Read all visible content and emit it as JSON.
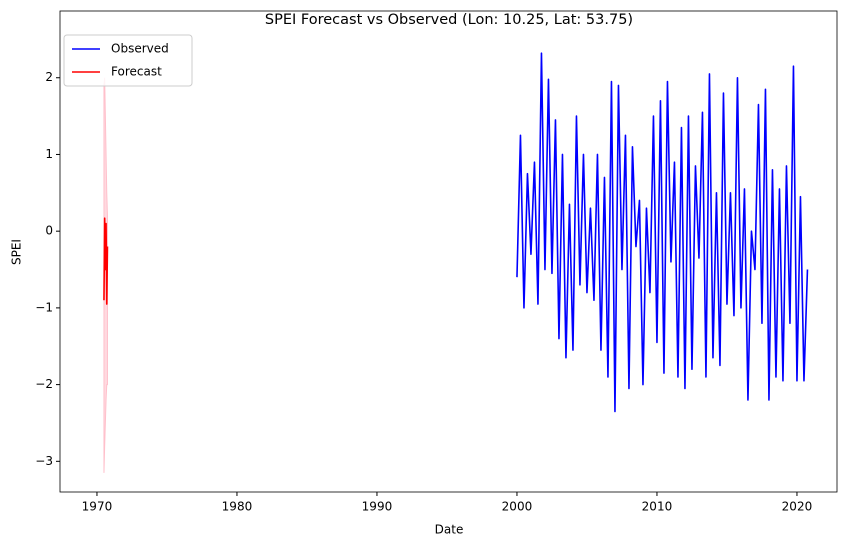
{
  "chart_data": {
    "type": "line",
    "title": "SPEI Forecast vs Observed (Lon: 10.25, Lat: 53.75)",
    "x_label": "Date",
    "y_label": "SPEI",
    "xlim": [
      1967.36,
      2022.86
    ],
    "ylim": [
      -3.4,
      2.87
    ],
    "xticks": [
      1970,
      1980,
      1990,
      2000,
      2010,
      2020
    ],
    "yticks": [
      {
        "value": -3,
        "label": "−3"
      },
      {
        "value": -2,
        "label": "−2"
      },
      {
        "value": -1,
        "label": "−1"
      },
      0,
      1,
      2
    ],
    "legend": "upper left",
    "series": [
      {
        "name": "Observed",
        "color": "#0000ff",
        "x": [
          2000,
          2000.25,
          2000.5,
          2000.75,
          2001,
          2001.25,
          2001.5,
          2001.75,
          2002,
          2002.25,
          2002.5,
          2002.75,
          2003,
          2003.25,
          2003.5,
          2003.75,
          2004,
          2004.25,
          2004.5,
          2004.75,
          2005,
          2005.25,
          2005.5,
          2005.75,
          2006,
          2006.25,
          2006.5,
          2006.75,
          2007,
          2007.25,
          2007.5,
          2007.75,
          2008,
          2008.25,
          2008.5,
          2008.75,
          2009,
          2009.25,
          2009.5,
          2009.75,
          2010,
          2010.25,
          2010.5,
          2010.75,
          2011,
          2011.25,
          2011.5,
          2011.75,
          2012,
          2012.25,
          2012.5,
          2012.75,
          2013,
          2013.25,
          2013.5,
          2013.75,
          2014,
          2014.25,
          2014.5,
          2014.75,
          2015,
          2015.25,
          2015.5,
          2015.75,
          2016,
          2016.25,
          2016.5,
          2016.75,
          2017,
          2017.25,
          2017.5,
          2017.75,
          2018,
          2018.25,
          2018.5,
          2018.75,
          2019,
          2019.25,
          2019.5,
          2019.75,
          2020,
          2020.25,
          2020.5,
          2020.75
        ],
        "values": [
          -0.6,
          1.25,
          -1.0,
          0.75,
          -0.3,
          0.9,
          -0.95,
          2.32,
          -0.5,
          1.98,
          -0.55,
          1.45,
          -1.4,
          1.0,
          -1.65,
          0.35,
          -1.55,
          1.5,
          -0.7,
          1.0,
          -0.8,
          0.3,
          -0.9,
          1.0,
          -1.55,
          0.7,
          -1.9,
          1.95,
          -2.35,
          1.9,
          -0.5,
          1.25,
          -2.05,
          1.1,
          -0.2,
          0.4,
          -2.0,
          0.3,
          -0.8,
          1.5,
          -1.45,
          1.7,
          -1.85,
          1.95,
          -0.4,
          0.9,
          -1.9,
          1.35,
          -2.05,
          1.5,
          -1.8,
          0.85,
          -0.35,
          1.55,
          -1.9,
          2.05,
          -1.65,
          0.5,
          -1.75,
          1.8,
          -0.95,
          0.5,
          -1.1,
          2.0,
          -1.0,
          0.55,
          -2.2,
          0.0,
          -0.5,
          1.65,
          -1.2,
          1.85,
          -2.2,
          0.8,
          -1.9,
          0.55,
          -1.95,
          0.85,
          -1.2,
          2.15,
          -1.95,
          0.45,
          -1.95,
          -0.5
        ]
      },
      {
        "name": "Forecast",
        "color": "#ff0000",
        "x": [
          1970.5,
          1970.55,
          1970.6,
          1970.65,
          1970.7,
          1970.75
        ],
        "values": [
          -0.9,
          0.17,
          -0.5,
          0.1,
          -0.95,
          -0.2
        ],
        "band": {
          "color": "#ffc0cb",
          "upper": [
            1.9,
            2.0,
            1.5,
            1.0,
            0.5,
            0.2
          ],
          "lower": [
            -3.15,
            -2.8,
            -2.5,
            -2.2,
            -2.0,
            -2.0
          ]
        }
      }
    ]
  }
}
